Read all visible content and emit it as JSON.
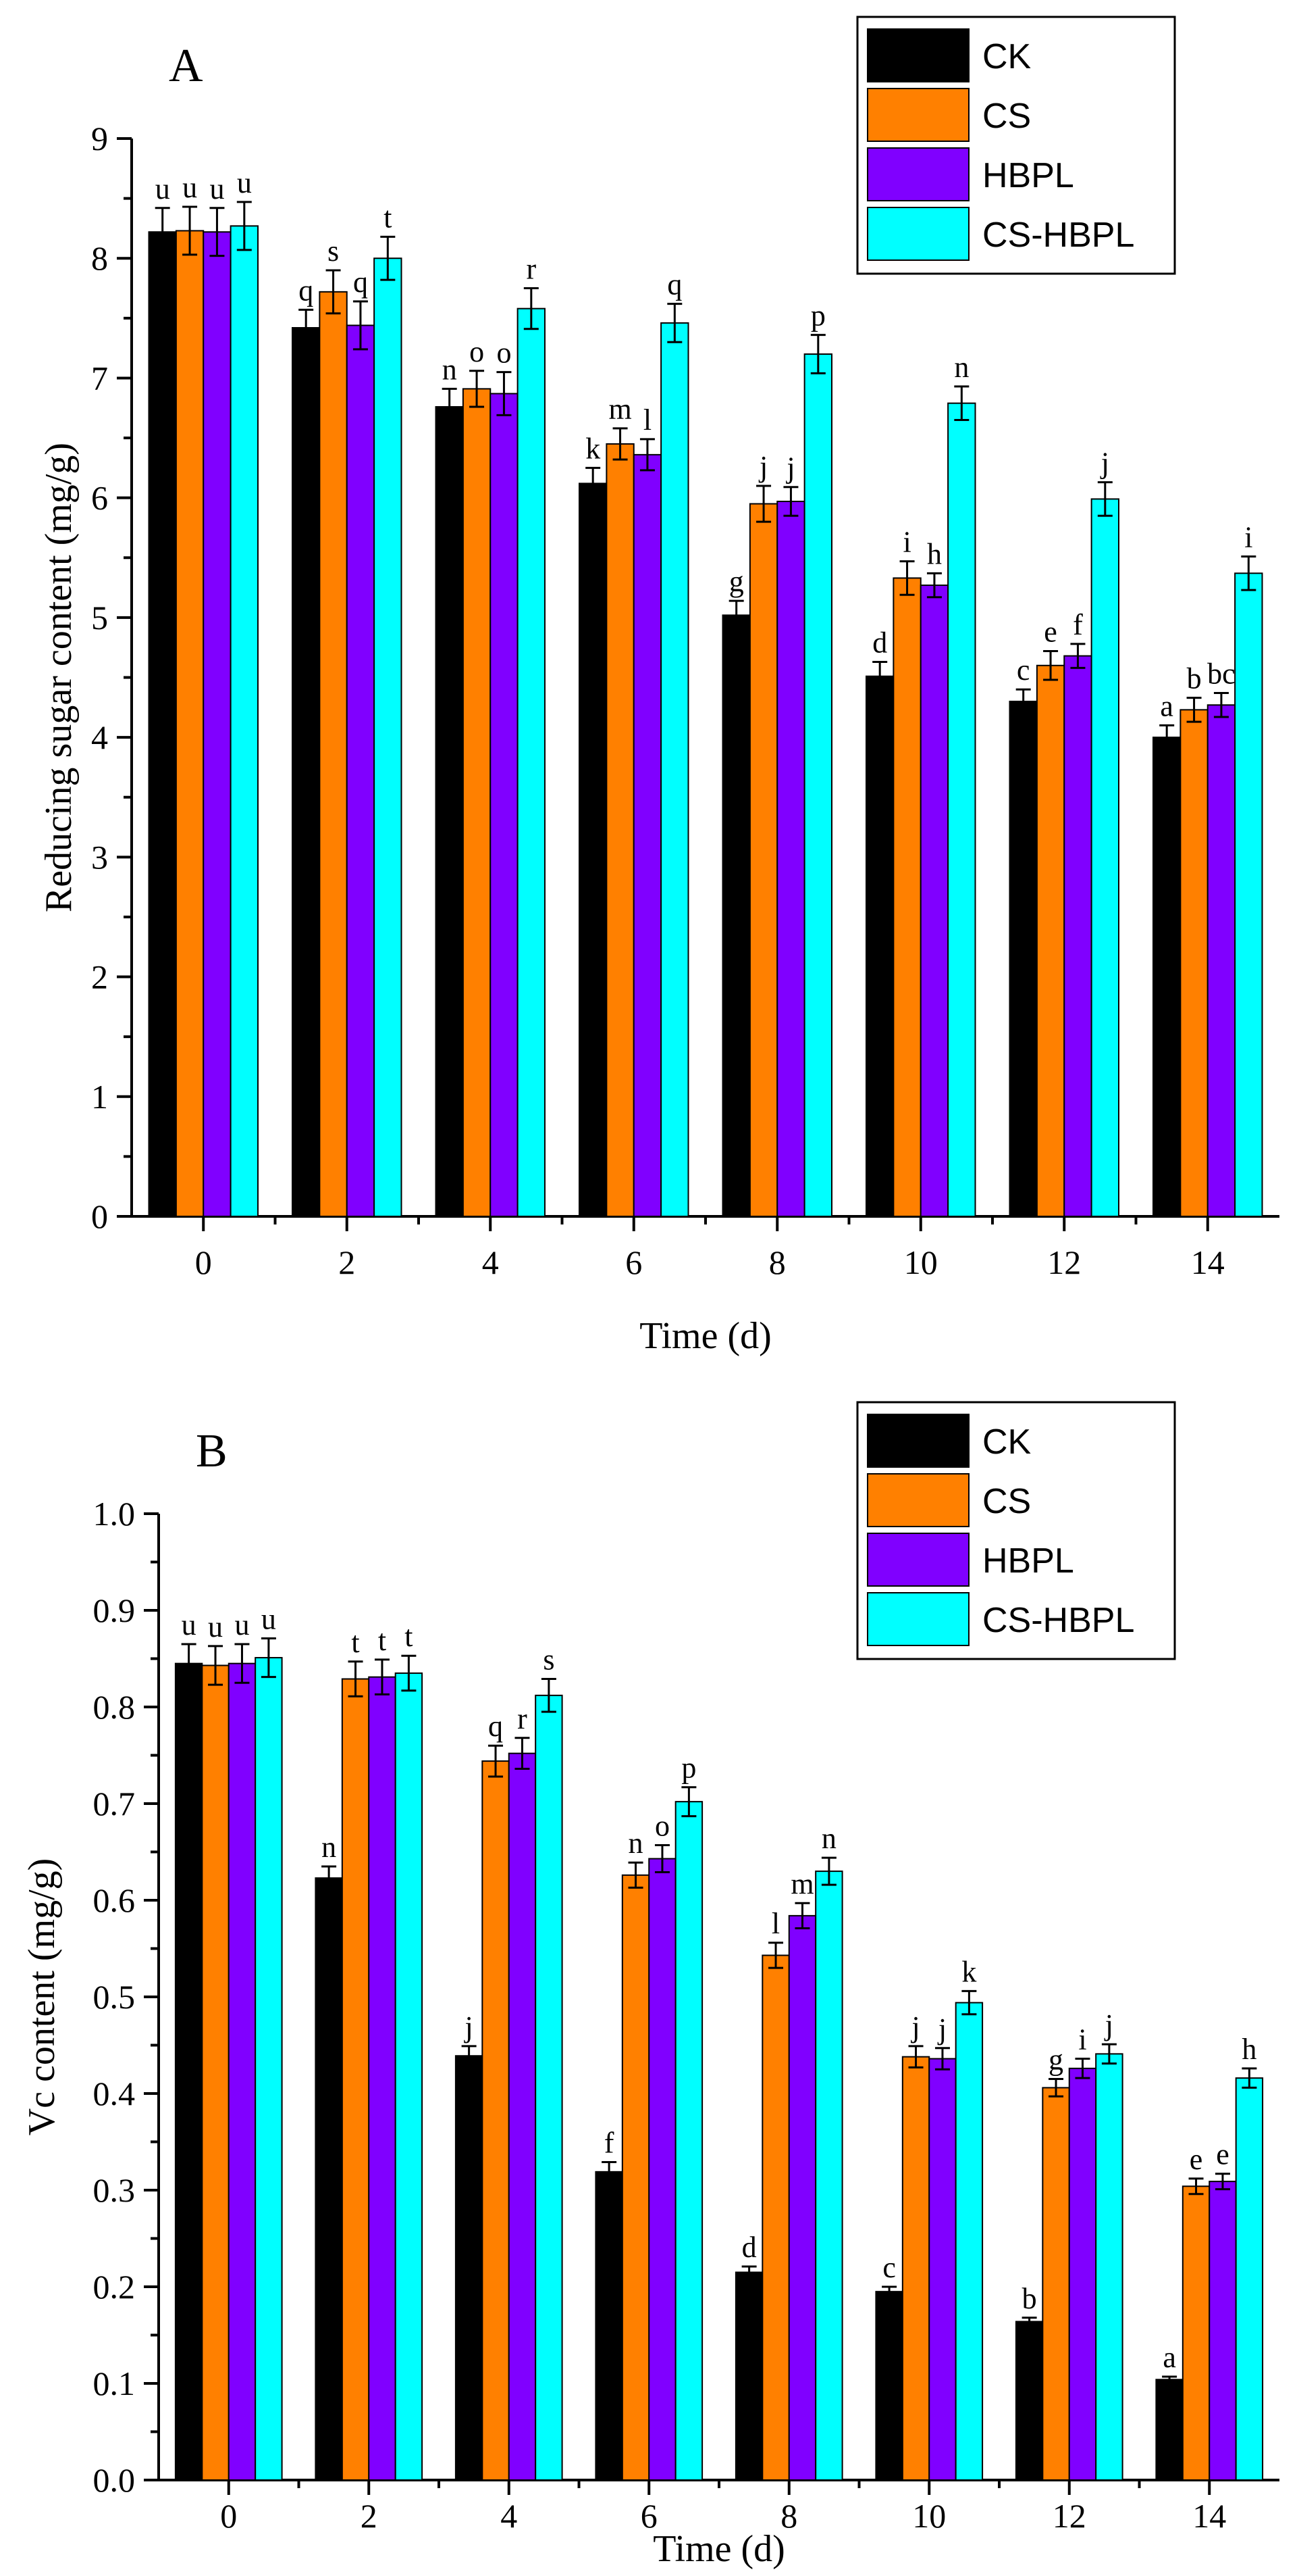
{
  "colors": {
    "CK": "#000000",
    "CS": "#ff8000",
    "HBPL": "#8000ff",
    "CS-HBPL": "#00ffff"
  },
  "chart_data": [
    {
      "type": "bar",
      "panel_label": "A",
      "xlabel": "Time (d)",
      "ylabel": "Reducing sugar content (mg/g)",
      "ylim": [
        0,
        9
      ],
      "yticks": [
        0,
        1,
        2,
        3,
        4,
        5,
        6,
        7,
        8,
        9
      ],
      "categories": [
        "0",
        "2",
        "4",
        "6",
        "8",
        "10",
        "12",
        "14"
      ],
      "legend": {
        "placement": "top-right",
        "entries": [
          "CK",
          "CS",
          "HBPL",
          "CS-HBPL"
        ]
      },
      "series": [
        {
          "name": "CK",
          "values": [
            8.22,
            7.42,
            6.76,
            6.12,
            5.02,
            4.51,
            4.3,
            4.0
          ],
          "errors": [
            0.2,
            0.15,
            0.15,
            0.13,
            0.12,
            0.12,
            0.1,
            0.1
          ],
          "labels": [
            "u",
            "q",
            "n",
            "k",
            "g",
            "d",
            "c",
            "a"
          ]
        },
        {
          "name": "CS",
          "values": [
            8.23,
            7.72,
            6.91,
            6.45,
            5.95,
            5.33,
            4.6,
            4.23
          ],
          "errors": [
            0.2,
            0.18,
            0.15,
            0.13,
            0.15,
            0.14,
            0.12,
            0.1
          ],
          "labels": [
            "u",
            "s",
            "o",
            "m",
            "j",
            "i",
            "e",
            "b"
          ]
        },
        {
          "name": "HBPL",
          "values": [
            8.22,
            7.44,
            6.87,
            6.36,
            5.97,
            5.27,
            4.68,
            4.27
          ],
          "errors": [
            0.2,
            0.2,
            0.18,
            0.13,
            0.12,
            0.1,
            0.1,
            0.1
          ],
          "labels": [
            "u",
            "q",
            "o",
            "l",
            "j",
            "h",
            "f",
            "bc"
          ]
        },
        {
          "name": "CS-HBPL",
          "values": [
            8.27,
            8.0,
            7.58,
            7.46,
            7.2,
            6.79,
            5.99,
            5.37
          ],
          "errors": [
            0.2,
            0.18,
            0.17,
            0.16,
            0.16,
            0.14,
            0.14,
            0.14
          ],
          "labels": [
            "u",
            "t",
            "r",
            "q",
            "p",
            "n",
            "j",
            "i"
          ]
        }
      ]
    },
    {
      "type": "bar",
      "panel_label": "B",
      "xlabel": "Time (d)",
      "ylabel": "Vc content (mg/g)",
      "ylim": [
        0,
        1.0
      ],
      "yticks": [
        0.0,
        0.1,
        0.2,
        0.3,
        0.4,
        0.5,
        0.6,
        0.7,
        0.8,
        0.9,
        1.0
      ],
      "ytick_labels": [
        "0.0",
        "0.1",
        "0.2",
        "0.3",
        "0.4",
        "0.5",
        "0.6",
        "0.7",
        "0.8",
        "0.9",
        "1.0"
      ],
      "categories": [
        "0",
        "2",
        "4",
        "6",
        "8",
        "10",
        "12",
        "14"
      ],
      "legend": {
        "placement": "top-right",
        "entries": [
          "CK",
          "CS",
          "HBPL",
          "CS-HBPL"
        ]
      },
      "series": [
        {
          "name": "CK",
          "values": [
            0.845,
            0.623,
            0.439,
            0.319,
            0.215,
            0.195,
            0.164,
            0.104
          ],
          "errors": [
            0.02,
            0.012,
            0.01,
            0.01,
            0.006,
            0.005,
            0.004,
            0.003
          ],
          "labels": [
            "u",
            "n",
            "j",
            "f",
            "d",
            "c",
            "b",
            "a"
          ]
        },
        {
          "name": "CS",
          "values": [
            0.843,
            0.829,
            0.744,
            0.626,
            0.543,
            0.438,
            0.406,
            0.304
          ],
          "errors": [
            0.02,
            0.018,
            0.016,
            0.013,
            0.013,
            0.011,
            0.009,
            0.008
          ],
          "labels": [
            "u",
            "t",
            "q",
            "n",
            "l",
            "j",
            "g",
            "e"
          ]
        },
        {
          "name": "HBPL",
          "values": [
            0.845,
            0.831,
            0.752,
            0.643,
            0.584,
            0.436,
            0.426,
            0.309
          ],
          "errors": [
            0.02,
            0.018,
            0.016,
            0.014,
            0.013,
            0.011,
            0.01,
            0.008
          ],
          "labels": [
            "u",
            "t",
            "r",
            "o",
            "m",
            "j",
            "i",
            "e"
          ]
        },
        {
          "name": "CS-HBPL",
          "values": [
            0.851,
            0.835,
            0.812,
            0.702,
            0.63,
            0.494,
            0.441,
            0.416
          ],
          "errors": [
            0.02,
            0.018,
            0.017,
            0.015,
            0.014,
            0.012,
            0.01,
            0.01
          ],
          "labels": [
            "u",
            "t",
            "s",
            "p",
            "n",
            "k",
            "j",
            "h"
          ]
        }
      ]
    }
  ]
}
